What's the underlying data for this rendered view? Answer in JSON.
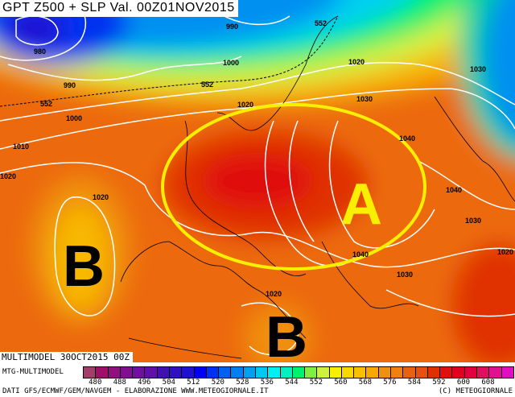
{
  "title": "GPT Z500 + SLP Val. 00Z01NOV2015",
  "run_label": "MULTIMODEL 30OCT2015 00Z",
  "model": "MTG-MULTIMODEL",
  "credits": "DATI GFS/ECMWF/GEM/NAVGEM - ELABORAZIONE WWW.METEOGIORNALE.IT",
  "copyright": "(C) METEOGIORNALE",
  "legend": {
    "ticks": [
      "480",
      "488",
      "496",
      "504",
      "512",
      "520",
      "528",
      "536",
      "544",
      "552",
      "560",
      "568",
      "576",
      "584",
      "592",
      "600",
      "608"
    ],
    "colors": [
      "#a0406a",
      "#a0106a",
      "#901080",
      "#801090",
      "#7010a0",
      "#6010a8",
      "#4010b0",
      "#3010c0",
      "#2010d0",
      "#0000f0",
      "#0030f0",
      "#0060f0",
      "#0080f0",
      "#00a0f0",
      "#00c8f0",
      "#00f0f0",
      "#00f0c0",
      "#00f070",
      "#80f040",
      "#d0f040",
      "#f8f000",
      "#f8d800",
      "#f8c000",
      "#f8a800",
      "#f09010",
      "#f08010",
      "#e86010",
      "#e85010",
      "#e03000",
      "#e01010",
      "#e00020",
      "#e00040",
      "#e01060",
      "#e01090",
      "#e010c0"
    ]
  },
  "pressure_systems": {
    "high": "A",
    "low1": "B",
    "low2": "B"
  },
  "highlight_color": "#f8f000",
  "contour_labels": [
    "980",
    "990",
    "1000",
    "990",
    "552",
    "552",
    "1000",
    "552",
    "1020",
    "1020",
    "1030",
    "1030",
    "1010",
    "1040",
    "1020",
    "1020",
    "1040",
    "1030",
    "1020",
    "1040",
    "1030",
    "1020"
  ]
}
